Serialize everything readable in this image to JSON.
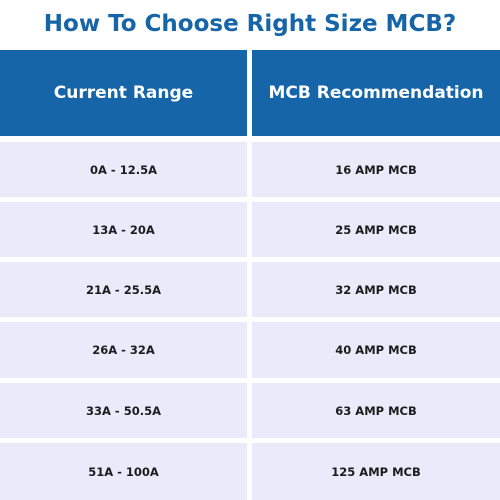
{
  "title": "How To Choose Right Size MCB?",
  "colors": {
    "accent": "#1565a8",
    "row_background": "#eaeafb",
    "text_dark": "#1c1c1c"
  },
  "table": {
    "headers": [
      "Current Range",
      "MCB Recommendation"
    ],
    "rows": [
      [
        "0A - 12.5A",
        "16 AMP MCB"
      ],
      [
        "13A - 20A",
        "25 AMP MCB"
      ],
      [
        "21A - 25.5A",
        "32 AMP MCB"
      ],
      [
        "26A - 32A",
        "40 AMP MCB"
      ],
      [
        "33A - 50.5A",
        "63 AMP MCB"
      ],
      [
        "51A - 100A",
        "125 AMP MCB"
      ]
    ]
  }
}
